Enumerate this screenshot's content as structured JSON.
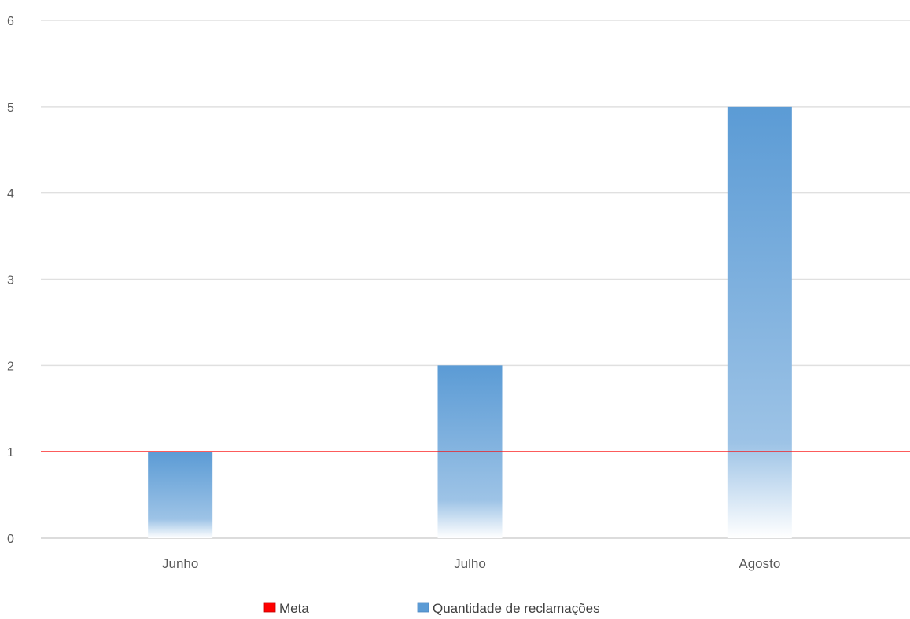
{
  "chart_data": {
    "type": "bar",
    "title": "",
    "xlabel": "",
    "ylabel": "",
    "categories": [
      "Junho",
      "Julho",
      "Agosto"
    ],
    "series": [
      {
        "name": "Quantidade de reclamações",
        "values": [
          1,
          2,
          5
        ],
        "color": "#5b9bd5",
        "style": "gradient fill fading to white at the bottom"
      }
    ],
    "reference_line": {
      "name": "Meta",
      "value": 1,
      "color": "#ff0000"
    },
    "ylim": [
      0,
      6
    ],
    "yticks": [
      0,
      1,
      2,
      3,
      4,
      5,
      6
    ],
    "grid": true,
    "gridline_color": "#e0e0e0",
    "legend_position": "bottom",
    "legend": [
      {
        "label": "Meta",
        "color": "#ff0000"
      },
      {
        "label": "Quantidade de reclamações",
        "color": "#5b9bd5"
      }
    ]
  }
}
